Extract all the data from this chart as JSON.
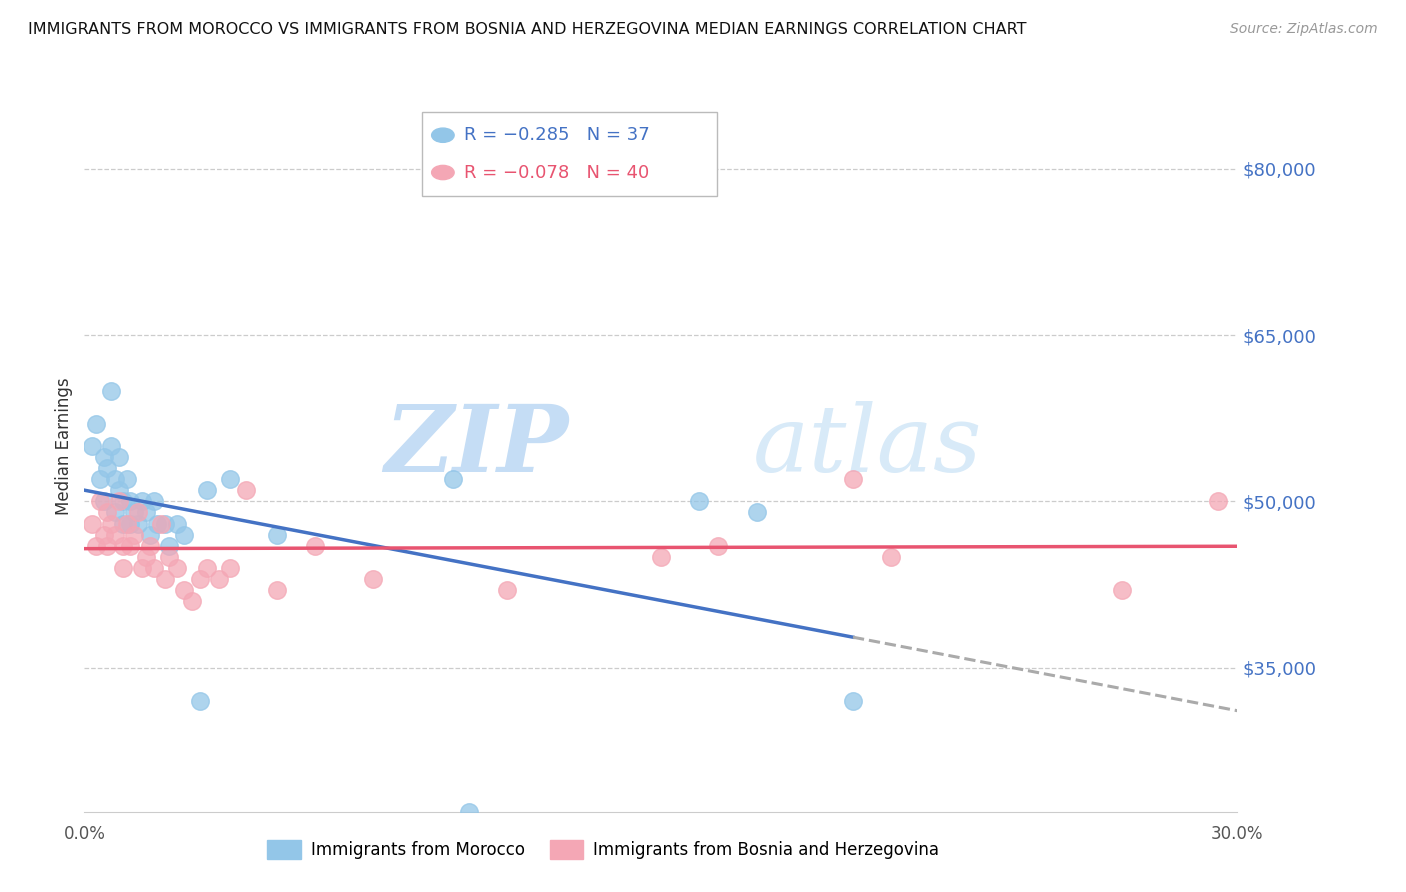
{
  "title": "IMMIGRANTS FROM MOROCCO VS IMMIGRANTS FROM BOSNIA AND HERZEGOVINA MEDIAN EARNINGS CORRELATION CHART",
  "source": "Source: ZipAtlas.com",
  "ylabel": "Median Earnings",
  "xlim": [
    0.0,
    0.3
  ],
  "ylim": [
    22000,
    88000
  ],
  "yticks": [
    35000,
    50000,
    65000,
    80000
  ],
  "xticks": [
    0.0,
    0.05,
    0.1,
    0.15,
    0.2,
    0.25,
    0.3
  ],
  "xtick_labels": [
    "0.0%",
    "",
    "",
    "",
    "",
    "",
    "30.0%"
  ],
  "ytick_labels": [
    "$35,000",
    "$50,000",
    "$65,000",
    "$80,000"
  ],
  "legend1_r": "-0.285",
  "legend1_n": "37",
  "legend2_r": "-0.078",
  "legend2_n": "40",
  "morocco_color": "#93C6E8",
  "bosnia_color": "#F4A7B5",
  "regression_morocco_color": "#4472C4",
  "regression_bosnia_color": "#E85470",
  "watermark_zip": "ZIP",
  "watermark_atlas": "atlas",
  "watermark_color": "#D8EAF8",
  "background_color": "#FFFFFF",
  "morocco_x": [
    0.002,
    0.003,
    0.004,
    0.005,
    0.005,
    0.006,
    0.007,
    0.007,
    0.008,
    0.008,
    0.009,
    0.009,
    0.01,
    0.01,
    0.011,
    0.012,
    0.012,
    0.013,
    0.014,
    0.015,
    0.016,
    0.017,
    0.018,
    0.019,
    0.021,
    0.022,
    0.024,
    0.026,
    0.03,
    0.032,
    0.038,
    0.05,
    0.096,
    0.16,
    0.175,
    0.2,
    0.1
  ],
  "morocco_y": [
    55000,
    57000,
    52000,
    54000,
    50000,
    53000,
    60000,
    55000,
    52000,
    49000,
    54000,
    51000,
    50000,
    48000,
    52000,
    50000,
    48000,
    49000,
    48000,
    50000,
    49000,
    47000,
    50000,
    48000,
    48000,
    46000,
    48000,
    47000,
    32000,
    51000,
    52000,
    47000,
    52000,
    50000,
    49000,
    32000,
    22000
  ],
  "bosnia_x": [
    0.002,
    0.003,
    0.004,
    0.005,
    0.006,
    0.006,
    0.007,
    0.008,
    0.009,
    0.01,
    0.01,
    0.011,
    0.012,
    0.013,
    0.014,
    0.015,
    0.016,
    0.017,
    0.018,
    0.02,
    0.021,
    0.022,
    0.024,
    0.026,
    0.028,
    0.03,
    0.032,
    0.035,
    0.038,
    0.042,
    0.05,
    0.06,
    0.075,
    0.11,
    0.15,
    0.165,
    0.2,
    0.21,
    0.27,
    0.295
  ],
  "bosnia_y": [
    48000,
    46000,
    50000,
    47000,
    49000,
    46000,
    48000,
    47000,
    50000,
    46000,
    44000,
    48000,
    46000,
    47000,
    49000,
    44000,
    45000,
    46000,
    44000,
    48000,
    43000,
    45000,
    44000,
    42000,
    41000,
    43000,
    44000,
    43000,
    44000,
    51000,
    42000,
    46000,
    43000,
    42000,
    45000,
    46000,
    52000,
    45000,
    42000,
    50000
  ]
}
